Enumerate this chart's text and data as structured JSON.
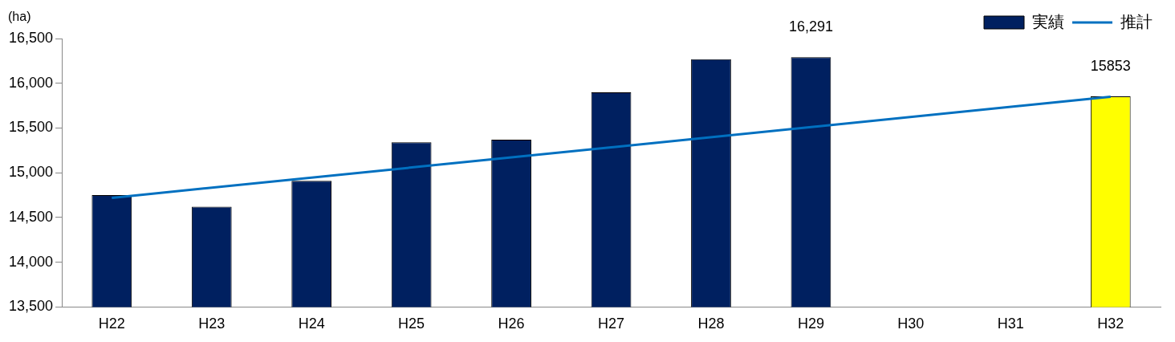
{
  "chart_data": {
    "type": "bar",
    "ylabel": "(ha)",
    "categories": [
      "H22",
      "H23",
      "H24",
      "H25",
      "H26",
      "H27",
      "H28",
      "H29",
      "H30",
      "H31",
      "H32"
    ],
    "series": [
      {
        "name": "実績",
        "color": "#002060",
        "colors": [
          "#002060",
          "#002060",
          "#002060",
          "#002060",
          "#002060",
          "#002060",
          "#002060",
          "#002060",
          "#002060",
          "#002060",
          "#ffff00"
        ],
        "values": [
          14750,
          14620,
          14910,
          15340,
          15370,
          15900,
          16270,
          16291,
          null,
          null,
          15853
        ],
        "value_labels": [
          null,
          null,
          null,
          null,
          null,
          null,
          null,
          "16,291",
          null,
          null,
          "15853"
        ]
      },
      {
        "name": "推計",
        "type": "line",
        "color": "#0070c0",
        "values": [
          14720,
          null,
          null,
          null,
          null,
          null,
          null,
          null,
          null,
          null,
          15850
        ]
      }
    ],
    "ylim": [
      13500,
      16500
    ],
    "yticks": [
      {
        "value": 13500,
        "label": "13,500"
      },
      {
        "value": 14000,
        "label": "14,000"
      },
      {
        "value": 14500,
        "label": "14,500"
      },
      {
        "value": 15000,
        "label": "15,000"
      },
      {
        "value": 15500,
        "label": "15,500"
      },
      {
        "value": 16000,
        "label": "16,000"
      },
      {
        "value": 16500,
        "label": "16,500"
      }
    ],
    "grid": false,
    "legend": "top right",
    "marker": "none"
  }
}
